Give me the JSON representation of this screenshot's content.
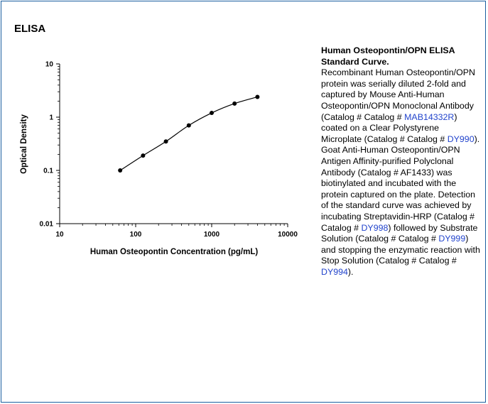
{
  "section_heading": "ELISA",
  "chart_data": {
    "type": "line",
    "title": "",
    "xlabel": "Human Osteopontin Concentration (pg/mL)",
    "ylabel": "Optical Density",
    "xscale": "log",
    "yscale": "log",
    "xlim": [
      10,
      10000
    ],
    "ylim": [
      0.01,
      10
    ],
    "x_ticks": [
      "10",
      "100",
      "1000",
      "10000"
    ],
    "y_ticks": [
      "0.01",
      "0.1",
      "1",
      "10"
    ],
    "grid": false,
    "legend": "none",
    "series": [
      {
        "x": [
          62.5,
          125,
          250,
          500,
          1000,
          2000,
          4000
        ],
        "y": [
          0.1,
          0.19,
          0.35,
          0.7,
          1.2,
          1.8,
          2.4
        ]
      }
    ]
  },
  "caption": {
    "title": "Human Osteopontin/OPN ELISA Standard Curve.",
    "t1": "Recombinant Human Osteopontin/OPN protein was serially diluted 2-fold and captured by Mouse Anti-Human Osteopontin/OPN Monoclonal Antibody (Catalog # Catalog # ",
    "link1": "MAB14332R",
    "t2": ") coated on a Clear Polystyrene Microplate (Catalog # Catalog # ",
    "link2": "DY990",
    "t3": "). Goat Anti-Human Osteopontin/OPN Antigen Affinity-purified Polyclonal Antibody (Catalog # AF1433) was biotinylated and incubated with the protein captured on the plate. Detection of the standard curve was achieved by incubating Streptavidin-HRP (Catalog # Catalog # ",
    "link3": "DY998",
    "t4": ") followed by Substrate Solution (Catalog # Catalog # ",
    "link4": "DY999",
    "t5": ") and stopping the enzymatic reaction with Stop Solution (Catalog # Catalog # ",
    "link5": "DY994",
    "t6": ")."
  }
}
